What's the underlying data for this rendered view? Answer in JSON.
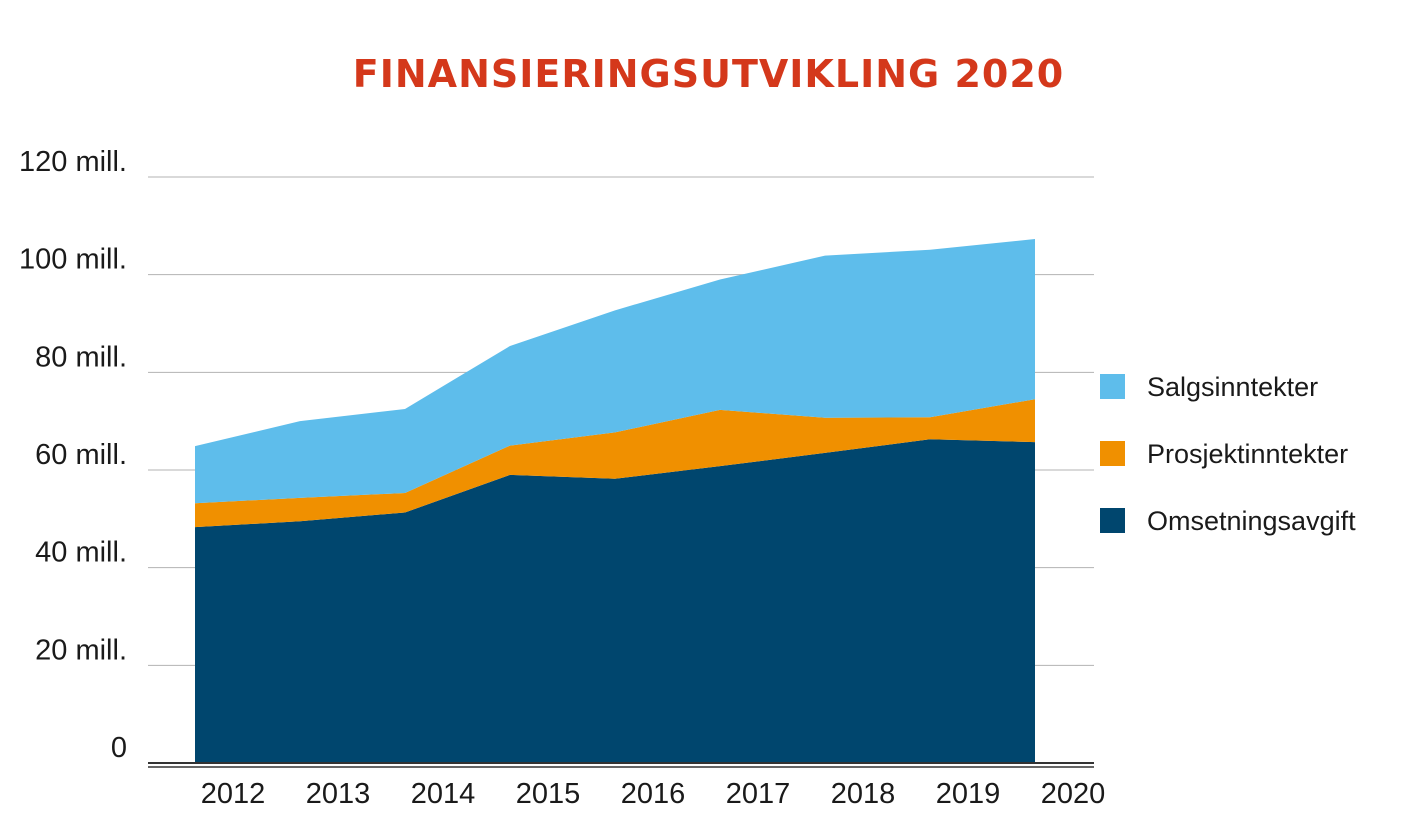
{
  "chart_data": {
    "type": "area",
    "stacked": true,
    "title": "FINANSIERINGSUTVIKLING 2020",
    "xlabel": "",
    "ylabel": "",
    "categories": [
      "2012",
      "2013",
      "2014",
      "2015",
      "2016",
      "2017",
      "2018",
      "2019",
      "2020"
    ],
    "ylim": [
      0,
      120
    ],
    "yticks": [
      0,
      20,
      40,
      60,
      80,
      100,
      120
    ],
    "ytick_labels": [
      "0",
      "20 mill.",
      "40 mill.",
      "60 mill.",
      "80 mill.",
      "100 mill.",
      "120 mill."
    ],
    "grid": true,
    "legend_position": "right",
    "series": [
      {
        "name": "Omsetningsavgift",
        "color": "#00466e",
        "values": [
          48.3,
          49.5,
          51.3,
          59.0,
          58.2,
          60.8,
          63.5,
          66.3,
          65.7
        ]
      },
      {
        "name": "Prosjektinntekter",
        "color": "#f09000",
        "values": [
          4.9,
          4.8,
          4.0,
          6.0,
          9.5,
          11.5,
          7.2,
          4.5,
          8.8
        ]
      },
      {
        "name": "Salgsinntekter",
        "color": "#5ebdeb",
        "values": [
          11.7,
          15.7,
          17.2,
          20.4,
          25.0,
          26.7,
          33.2,
          34.3,
          32.8
        ]
      }
    ],
    "legend_order": [
      "Salgsinntekter",
      "Prosjektinntekter",
      "Omsetningsavgift"
    ]
  }
}
